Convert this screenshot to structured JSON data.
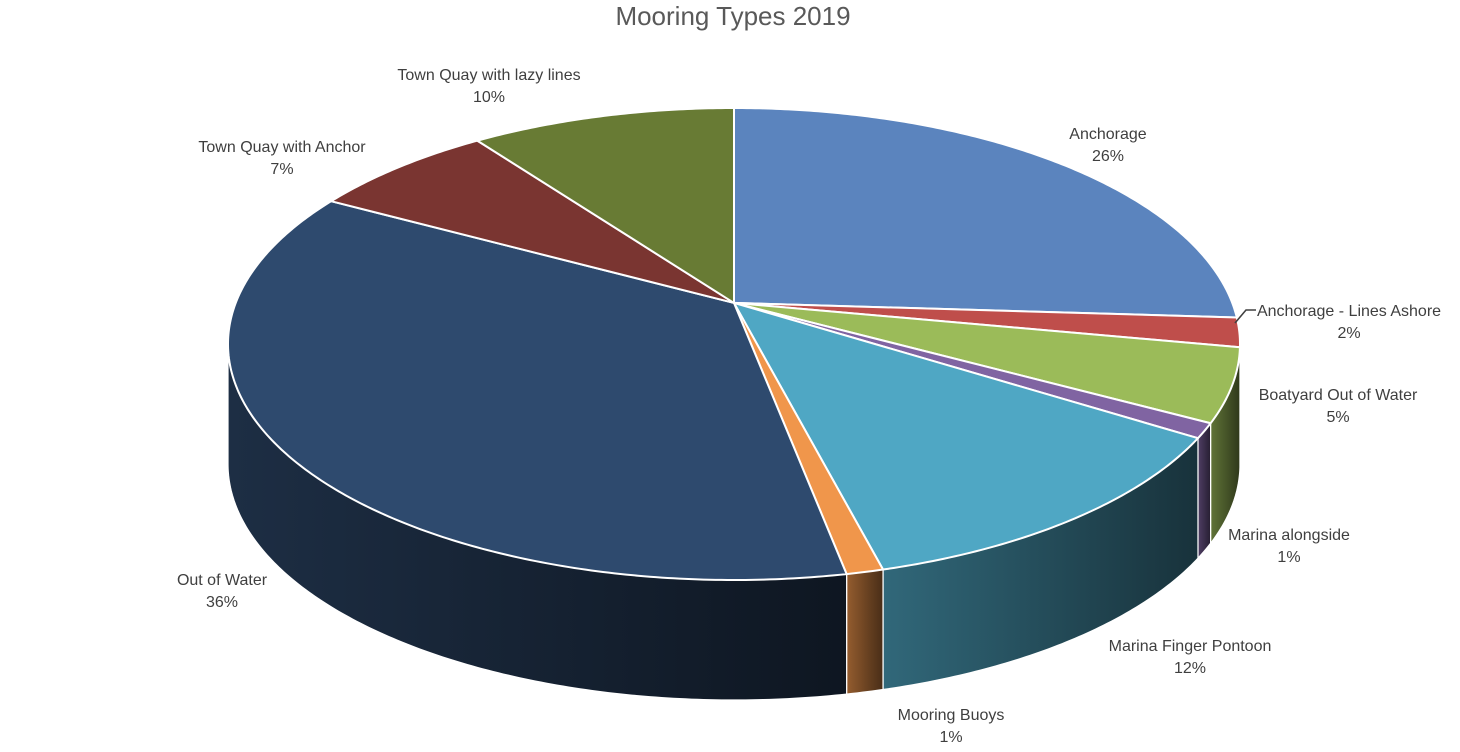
{
  "chart_data": {
    "type": "pie",
    "effect": "3d",
    "title": "Mooring Types 2019",
    "start_angle_deg": 0,
    "direction": "clockwise",
    "data_labels": "category name and percentage, outside end",
    "legend": "none",
    "slices": [
      {
        "label": "Anchorage",
        "value_pct": 26,
        "pct_label": "26%",
        "color": "#5B84BE"
      },
      {
        "label": "Anchorage - Lines Ashore",
        "value_pct": 2,
        "pct_label": "2%",
        "color": "#BF4E4B"
      },
      {
        "label": "Boatyard Out of Water",
        "value_pct": 5,
        "pct_label": "5%",
        "color": "#9BBB59"
      },
      {
        "label": "Marina alongside",
        "value_pct": 1,
        "pct_label": "1%",
        "color": "#8064A2"
      },
      {
        "label": "Marina Finger Pontoon",
        "value_pct": 12,
        "pct_label": "12%",
        "color": "#4FA7C4"
      },
      {
        "label": "Mooring Buoys",
        "value_pct": 1,
        "pct_label": "1%",
        "color": "#F0964B"
      },
      {
        "label": "Out of Water",
        "value_pct": 36,
        "pct_label": "36%",
        "color": "#2E4A6E"
      },
      {
        "label": "Town Quay with Anchor",
        "value_pct": 7,
        "pct_label": "7%",
        "color": "#7A3531"
      },
      {
        "label": "Town Quay with lazy lines",
        "value_pct": 10,
        "pct_label": "10%",
        "color": "#687B34"
      }
    ],
    "colors": {
      "title": "#595959",
      "labels": "#3F3F3F",
      "background": "#FFFFFF",
      "slice_border": "#FFFFFF",
      "leader_line": "#404040"
    }
  }
}
